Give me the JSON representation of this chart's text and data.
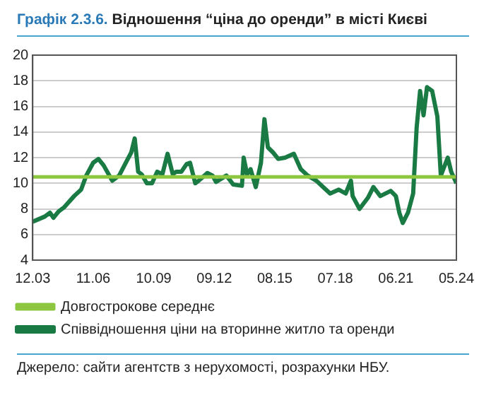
{
  "chart_data": {
    "type": "line",
    "title": "Графік 2.3.6. Відношення “ціна до оренди” в місті Києві",
    "xlim": [
      "2003-12",
      "2024-05"
    ],
    "xticks": [
      {
        "value": "2003-12",
        "label": "12.03"
      },
      {
        "value": "2006-11",
        "label": "11.06"
      },
      {
        "value": "2009-10",
        "label": "10.09"
      },
      {
        "value": "2012-09",
        "label": "09.12"
      },
      {
        "value": "2015-08",
        "label": "08.15"
      },
      {
        "value": "2018-07",
        "label": "07.18"
      },
      {
        "value": "2021-06",
        "label": "06.21"
      },
      {
        "value": "2024-05",
        "label": "05.24"
      }
    ],
    "ylim": [
      4,
      20
    ],
    "yticks": [
      4,
      6,
      8,
      10,
      12,
      14,
      16,
      18,
      20
    ],
    "grid": "y",
    "legend": "bottom",
    "marker": "none",
    "line_style": "solid",
    "series": [
      {
        "name": "Довгострокове середнє",
        "color": "#8dc63f",
        "x": [
          "2003-12",
          "2024-05"
        ],
        "values": [
          10.5,
          10.5
        ]
      },
      {
        "name": "Співвідношення ціни на вторинне житло та оренди",
        "color": "#1a7a44",
        "x": [
          "2003-12",
          "2004-07",
          "2004-10",
          "2004-12",
          "2005-03",
          "2005-06",
          "2005-12",
          "2006-04",
          "2006-07",
          "2006-11",
          "2007-02",
          "2007-05",
          "2007-10",
          "2008-02",
          "2008-07",
          "2008-09",
          "2008-11",
          "2009-01",
          "2009-03",
          "2009-06",
          "2009-09",
          "2009-12",
          "2010-03",
          "2010-06",
          "2010-09",
          "2010-11",
          "2011-02",
          "2011-05",
          "2011-07",
          "2011-10",
          "2011-12",
          "2012-05",
          "2012-08",
          "2012-10",
          "2013-04",
          "2013-08",
          "2014-01",
          "2014-02",
          "2014-04",
          "2014-06",
          "2014-09",
          "2014-12",
          "2015-02",
          "2015-04",
          "2015-07",
          "2015-10",
          "2016-02",
          "2016-07",
          "2016-11",
          "2017-03",
          "2017-08",
          "2017-12",
          "2018-04",
          "2018-09",
          "2019-01",
          "2019-04",
          "2019-05",
          "2019-09",
          "2020-02",
          "2020-05",
          "2020-09",
          "2021-03",
          "2021-06",
          "2021-08",
          "2021-10",
          "2022-01",
          "2022-04",
          "2022-06",
          "2022-08",
          "2022-10",
          "2022-12",
          "2023-03",
          "2023-06",
          "2023-08",
          "2023-12",
          "2024-02",
          "2024-05"
        ],
        "values": [
          7.0,
          7.4,
          7.7,
          7.3,
          7.8,
          8.1,
          9.0,
          9.5,
          10.6,
          11.6,
          11.9,
          11.4,
          10.2,
          10.6,
          11.9,
          12.4,
          13.5,
          10.9,
          10.7,
          10.0,
          10.0,
          10.9,
          10.7,
          12.3,
          10.7,
          10.9,
          10.9,
          11.5,
          11.6,
          10.0,
          10.2,
          10.8,
          10.6,
          10.1,
          10.6,
          9.9,
          9.8,
          12.0,
          10.7,
          11.1,
          9.7,
          11.6,
          15.0,
          12.8,
          12.4,
          11.9,
          12.0,
          12.3,
          11.1,
          10.6,
          10.2,
          9.7,
          9.2,
          9.5,
          9.2,
          10.2,
          9.0,
          8.0,
          8.9,
          9.7,
          9.0,
          9.4,
          9.0,
          7.7,
          6.9,
          7.7,
          9.2,
          14.3,
          17.2,
          15.3,
          17.5,
          17.2,
          15.2,
          10.6,
          12.0,
          10.9,
          10.0
        ]
      }
    ],
    "annotations": [
      "Джерело: сайти агентств з нерухомості, розрахунки НБУ."
    ]
  }
}
